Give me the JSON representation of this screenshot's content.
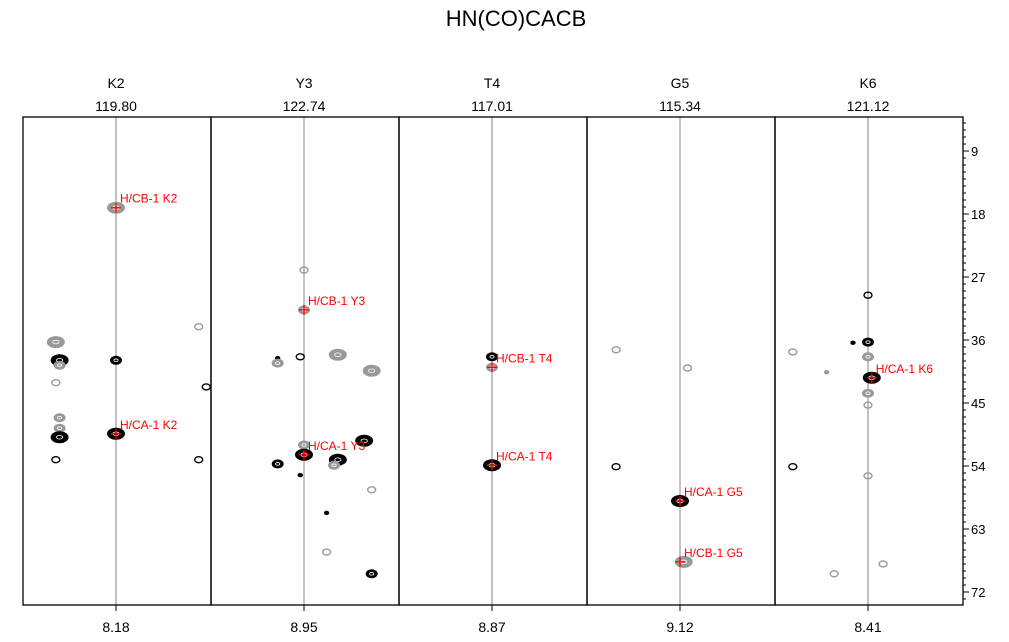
{
  "chart_data": {
    "type": "scatter",
    "subtype": "nmr-strip-plot",
    "title": "HN(CO)CACB",
    "y_axis": {
      "label": "",
      "range": [
        4.14,
        73.86
      ],
      "ticks": [
        9,
        18,
        27,
        36,
        45,
        54,
        63,
        72
      ],
      "position": "right"
    },
    "colors": {
      "positive": "#000000",
      "negative": "#999999",
      "label": "#ff0000",
      "center_line": "#999999"
    },
    "strips": [
      {
        "residue": "K2",
        "n15": "119.80",
        "h1": "8.18",
        "peaks": [
          {
            "label": "H/CB-1 K2",
            "dx": 0,
            "c": 17.1
          },
          {
            "label": "H/CA-1 K2",
            "dx": 0,
            "c": 49.4
          }
        ],
        "contours": [
          {
            "dx": 0,
            "c": 17.1,
            "sign": "neg",
            "int": 3
          },
          {
            "dx": -0.15,
            "c": 38.9,
            "sign": "pos",
            "int": 3
          },
          {
            "dx": -0.15,
            "c": 39.6,
            "sign": "neg",
            "int": 2
          },
          {
            "dx": -0.16,
            "c": 36.3,
            "sign": "neg",
            "int": 3
          },
          {
            "dx": -0.16,
            "c": 42.1,
            "sign": "neg",
            "int": 1
          },
          {
            "dx": 0,
            "c": 38.9,
            "sign": "pos",
            "int": 2
          },
          {
            "dx": -0.15,
            "c": 47.1,
            "sign": "neg",
            "int": 2
          },
          {
            "dx": -0.15,
            "c": 48.6,
            "sign": "neg",
            "int": 2
          },
          {
            "dx": -0.15,
            "c": 49.9,
            "sign": "pos",
            "int": 3
          },
          {
            "dx": -0.16,
            "c": 53.1,
            "sign": "pos",
            "int": 1
          },
          {
            "dx": 0,
            "c": 49.4,
            "sign": "pos",
            "int": 3
          },
          {
            "dx": 0.22,
            "c": 34.1,
            "sign": "neg",
            "int": 1
          },
          {
            "dx": 0.24,
            "c": 42.7,
            "sign": "pos",
            "int": 1
          },
          {
            "dx": 0.22,
            "c": 53.1,
            "sign": "pos",
            "int": 1
          }
        ]
      },
      {
        "residue": "Y3",
        "n15": "122.74",
        "h1": "8.95",
        "peaks": [
          {
            "label": "H/CB-1 Y3",
            "dx": 0,
            "c": 31.7
          },
          {
            "label": "H/CA-1 Y3",
            "dx": 0,
            "c": 52.4
          }
        ],
        "contours": [
          {
            "dx": 0,
            "c": 26,
            "sign": "neg",
            "int": 1
          },
          {
            "dx": 0,
            "c": 31.7,
            "sign": "neg",
            "int": 2
          },
          {
            "dx": -0.07,
            "c": 38.6,
            "sign": "pos",
            "int": 0
          },
          {
            "dx": -0.07,
            "c": 39.3,
            "sign": "neg",
            "int": 2
          },
          {
            "dx": -0.01,
            "c": 38.4,
            "sign": "pos",
            "int": 1
          },
          {
            "dx": 0.09,
            "c": 38.1,
            "sign": "neg",
            "int": 3
          },
          {
            "dx": 0.18,
            "c": 40.4,
            "sign": "neg",
            "int": 3
          },
          {
            "dx": 0,
            "c": 51,
            "sign": "neg",
            "int": 2
          },
          {
            "dx": 0,
            "c": 52.4,
            "sign": "pos",
            "int": 3
          },
          {
            "dx": -0.07,
            "c": 53.7,
            "sign": "pos",
            "int": 2
          },
          {
            "dx": 0.09,
            "c": 53.1,
            "sign": "pos",
            "int": 3
          },
          {
            "dx": 0.16,
            "c": 50.4,
            "sign": "pos",
            "int": 3
          },
          {
            "dx": 0.08,
            "c": 53.9,
            "sign": "neg",
            "int": 2
          },
          {
            "dx": -0.01,
            "c": 55.3,
            "sign": "pos",
            "int": 0
          },
          {
            "dx": 0.18,
            "c": 57.4,
            "sign": "neg",
            "int": 1
          },
          {
            "dx": 0.06,
            "c": 60.7,
            "sign": "pos",
            "int": 0
          },
          {
            "dx": 0.06,
            "c": 66.3,
            "sign": "neg",
            "int": 1
          },
          {
            "dx": 0.18,
            "c": 69.4,
            "sign": "pos",
            "int": 2
          }
        ]
      },
      {
        "residue": "T4",
        "n15": "117.01",
        "h1": "8.87",
        "peaks": [
          {
            "label": "H/CB-1 T4",
            "dx": 0,
            "c": 39.9
          },
          {
            "label": "H/CA-1 T4",
            "dx": 0,
            "c": 53.9
          }
        ],
        "contours": [
          {
            "dx": 0,
            "c": 38.4,
            "sign": "pos",
            "int": 2
          },
          {
            "dx": 0,
            "c": 39.9,
            "sign": "neg",
            "int": 2
          },
          {
            "dx": 0,
            "c": 53.9,
            "sign": "pos",
            "int": 3
          }
        ]
      },
      {
        "residue": "G5",
        "n15": "115.34",
        "h1": "9.12",
        "peaks": [
          {
            "label": "H/CA-1 G5",
            "dx": 0,
            "c": 59.0
          },
          {
            "label": "H/CB-1 G5",
            "dx": 0,
            "c": 67.7
          }
        ],
        "contours": [
          {
            "dx": -0.17,
            "c": 37.4,
            "sign": "neg",
            "int": 1
          },
          {
            "dx": 0.02,
            "c": 40,
            "sign": "neg",
            "int": 1
          },
          {
            "dx": -0.17,
            "c": 54.1,
            "sign": "pos",
            "int": 1
          },
          {
            "dx": 0,
            "c": 59,
            "sign": "pos",
            "int": 3
          },
          {
            "dx": 0.01,
            "c": 67.7,
            "sign": "neg",
            "int": 3
          }
        ]
      },
      {
        "residue": "K6",
        "n15": "121.12",
        "h1": "8.41",
        "peaks": [
          {
            "label": "H/CA-1 K6",
            "dx": 0.01,
            "c": 41.4
          }
        ],
        "contours": [
          {
            "dx": 0,
            "c": 29.6,
            "sign": "pos",
            "int": 1
          },
          {
            "dx": 0,
            "c": 36.3,
            "sign": "pos",
            "int": 2
          },
          {
            "dx": 0,
            "c": 38.4,
            "sign": "neg",
            "int": 2
          },
          {
            "dx": 0.01,
            "c": 41.4,
            "sign": "pos",
            "int": 3
          },
          {
            "dx": 0,
            "c": 43.6,
            "sign": "neg",
            "int": 2
          },
          {
            "dx": 0,
            "c": 45.3,
            "sign": "neg",
            "int": 1
          },
          {
            "dx": -0.2,
            "c": 37.7,
            "sign": "neg",
            "int": 1
          },
          {
            "dx": -0.11,
            "c": 40.6,
            "sign": "neg",
            "int": 0
          },
          {
            "dx": -0.2,
            "c": 54.1,
            "sign": "pos",
            "int": 1
          },
          {
            "dx": 0,
            "c": 55.4,
            "sign": "neg",
            "int": 1
          },
          {
            "dx": -0.09,
            "c": 69.4,
            "sign": "neg",
            "int": 1
          },
          {
            "dx": 0.04,
            "c": 68,
            "sign": "neg",
            "int": 1
          },
          {
            "dx": -0.04,
            "c": 36.4,
            "sign": "pos",
            "int": 0
          }
        ]
      }
    ]
  }
}
